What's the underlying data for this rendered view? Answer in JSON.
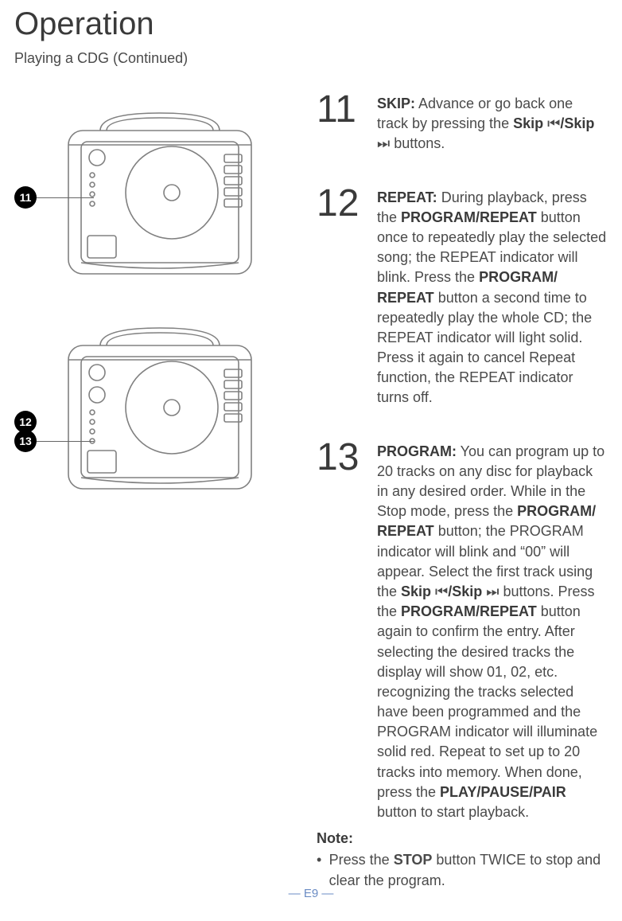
{
  "page": {
    "title": "Operation",
    "subtitle": "Playing a CDG (Continued)",
    "footer": "— E9 —",
    "footer_color": "#6b8cc4"
  },
  "diagram": {
    "stroke": "#808080",
    "stroke_width": 1.6,
    "badge_bg": "#000000",
    "badge_fg": "#ffffff",
    "badges_top": [
      "11"
    ],
    "badges_bottom": [
      "12",
      "13"
    ]
  },
  "steps": [
    {
      "num": "11",
      "lead": "SKIP:",
      "body_parts": [
        " Advance or go back one track by pressing the ",
        {
          "b": "Skip "
        },
        {
          "icon": "⏮"
        },
        {
          "b": "/Skip "
        },
        {
          "icon": "⏭"
        },
        " buttons."
      ]
    },
    {
      "num": "12",
      "lead": "REPEAT:",
      "body_parts": [
        " During playback, press the ",
        {
          "b": "PROGRAM/REPEAT"
        },
        " button once to repeatedly play the selected song; the REPEAT indicator will blink. Press the ",
        {
          "b": "PROGRAM/ REPEAT"
        },
        " button a second time to repeatedly play the whole CD; the REPEAT indicator will light solid. Press it again to cancel Repeat function, the REPEAT indicator turns off."
      ]
    },
    {
      "num": "13",
      "lead": "PROGRAM:",
      "body_parts": [
        " You can program up to 20 tracks on any disc for playback in any desired order. While in the Stop mode, press the ",
        {
          "b": "PROGRAM/ REPEAT"
        },
        "  button; the PROGRAM indicator will blink and “00” will appear. Select the first track using the ",
        {
          "b": "Skip "
        },
        {
          "icon": "⏮"
        },
        {
          "b": "/Skip "
        },
        {
          "icon": "⏭"
        },
        " buttons. Press the ",
        {
          "b": "PROGRAM/REPEAT"
        },
        " button again to confirm the entry. After selecting the desired tracks the display will show 01, 02, etc. recognizing the tracks selected have been programmed and the PROGRAM indicator will illuminate solid red. Repeat to set up to 20 tracks into memory. When done, press the ",
        {
          "b": "PLAY/PAUSE/PAIR"
        },
        " button to start playback."
      ],
      "note_label": "Note:",
      "note_parts": [
        "Press the ",
        {
          "b": "STOP"
        },
        " button TWICE to stop and clear the program."
      ]
    }
  ]
}
